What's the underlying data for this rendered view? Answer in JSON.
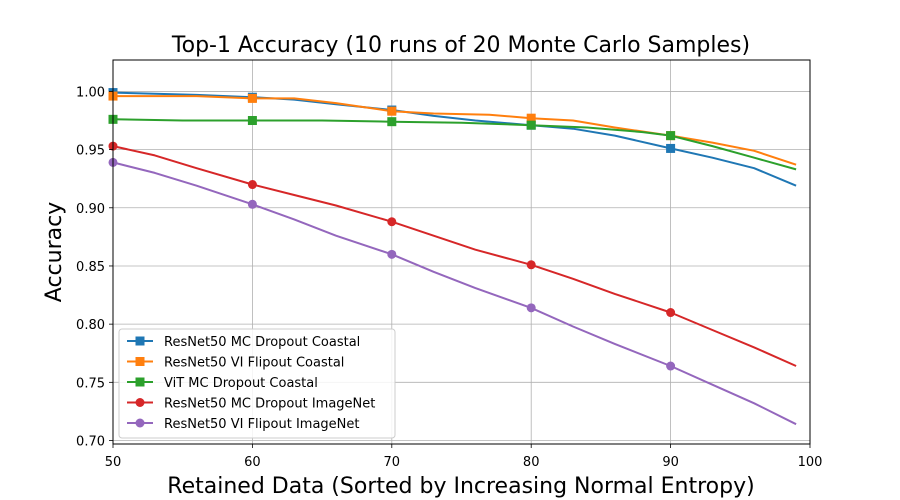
{
  "chart_data": {
    "type": "line",
    "title": "Top-1 Accuracy (10 runs of 20 Monte Carlo Samples)",
    "xlabel": "Retained Data (Sorted by Increasing Normal Entropy)",
    "ylabel": "Accuracy",
    "xlim": [
      50,
      100
    ],
    "ylim": [
      0.697,
      1.027
    ],
    "xticks": [
      "50",
      "60",
      "70",
      "80",
      "90",
      "100"
    ],
    "yticks": [
      "0.70",
      "0.75",
      "0.80",
      "0.85",
      "0.90",
      "0.95",
      "1.00"
    ],
    "grid": true,
    "legend_position": "lower-left",
    "series": [
      {
        "name": "ResNet50 MC Dropout Coastal",
        "color": "#1f77b4",
        "marker": "square",
        "x": [
          50,
          53,
          56,
          60,
          63,
          66,
          70,
          73,
          76,
          80,
          83,
          86,
          90,
          93,
          96,
          99
        ],
        "y": [
          0.999,
          0.998,
          0.997,
          0.995,
          0.993,
          0.989,
          0.984,
          0.979,
          0.975,
          0.971,
          0.968,
          0.962,
          0.951,
          0.943,
          0.934,
          0.919
        ],
        "marker_x": [
          50,
          60,
          70,
          80,
          90
        ]
      },
      {
        "name": "ResNet50 VI Flipout Coastal",
        "color": "#ff7f0e",
        "marker": "square",
        "x": [
          50,
          53,
          56,
          60,
          63,
          66,
          70,
          73,
          77,
          80,
          83,
          86,
          90,
          93,
          96,
          99
        ],
        "y": [
          0.996,
          0.996,
          0.996,
          0.994,
          0.994,
          0.99,
          0.983,
          0.981,
          0.98,
          0.977,
          0.975,
          0.969,
          0.962,
          0.956,
          0.949,
          0.937
        ],
        "marker_x": [
          50,
          60,
          70,
          80,
          90
        ]
      },
      {
        "name": "ViT MC Dropout Coastal",
        "color": "#2ca02c",
        "marker": "square",
        "x": [
          50,
          55,
          60,
          65,
          70,
          75,
          80,
          84,
          88,
          90,
          93,
          96,
          99
        ],
        "y": [
          0.976,
          0.975,
          0.975,
          0.975,
          0.974,
          0.973,
          0.971,
          0.969,
          0.965,
          0.962,
          0.953,
          0.943,
          0.933
        ],
        "marker_x": [
          50,
          60,
          70,
          80,
          90
        ]
      },
      {
        "name": "ResNet50 MC Dropout ImageNet",
        "color": "#d62728",
        "marker": "circle",
        "x": [
          50,
          53,
          56,
          60,
          63,
          66,
          70,
          73,
          76,
          80,
          83,
          86,
          90,
          93,
          96,
          99
        ],
        "y": [
          0.953,
          0.945,
          0.934,
          0.92,
          0.911,
          0.902,
          0.888,
          0.876,
          0.864,
          0.851,
          0.839,
          0.826,
          0.81,
          0.795,
          0.78,
          0.764
        ],
        "marker_x": [
          50,
          60,
          70,
          80,
          90
        ]
      },
      {
        "name": "ResNet50 VI Flipout ImageNet",
        "color": "#9467bd",
        "marker": "circle",
        "x": [
          50,
          53,
          56,
          60,
          63,
          66,
          70,
          73,
          76,
          80,
          83,
          86,
          90,
          93,
          96,
          99
        ],
        "y": [
          0.939,
          0.93,
          0.919,
          0.903,
          0.89,
          0.876,
          0.86,
          0.845,
          0.831,
          0.814,
          0.798,
          0.783,
          0.764,
          0.748,
          0.732,
          0.714
        ],
        "marker_x": [
          50,
          60,
          70,
          80,
          90
        ]
      }
    ]
  }
}
